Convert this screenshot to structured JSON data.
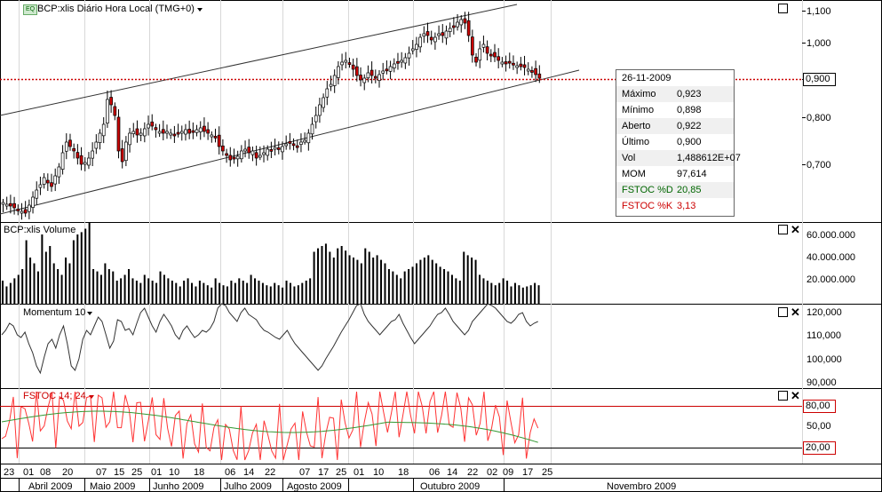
{
  "main_pane": {
    "title": "BCP:xlis Diário Hora Local (TMG+0)",
    "badge": "EQ",
    "y_ticks": [
      "1,100",
      "1,000",
      "0,900",
      "0,800",
      "0,700"
    ],
    "current_price": "0,900"
  },
  "info_box": {
    "date": "26-11-2009",
    "rows": [
      {
        "label": "Máximo",
        "value": "0,923",
        "color": "#000000"
      },
      {
        "label": "Mínimo",
        "value": "0,898",
        "color": "#000000"
      },
      {
        "label": "Aberto",
        "value": "0,922",
        "color": "#000000"
      },
      {
        "label": "Último",
        "value": "0,900",
        "color": "#000000"
      },
      {
        "label": "Vol",
        "value": "1,488612E+07",
        "color": "#000000"
      },
      {
        "label": "MOM",
        "value": "97,614",
        "color": "#000000"
      },
      {
        "label": "FSTOC %D",
        "value": "20,85",
        "color": "#006600"
      },
      {
        "label": "FSTOC %K",
        "value": "3,13",
        "color": "#cc0000"
      }
    ]
  },
  "volume_pane": {
    "title": "BCP:xlis Volume",
    "y_ticks": [
      "60.000.000",
      "40.000.000",
      "20.000.000"
    ]
  },
  "momentum_pane": {
    "title": "Momentum 10",
    "y_ticks": [
      "120,000",
      "110,000",
      "100,000",
      "90,000"
    ]
  },
  "fstoc_pane": {
    "title": "FSTOC 14; 24",
    "y_ticks": [
      "50,00"
    ],
    "levels": [
      "80,00",
      "20,00"
    ]
  },
  "x_axis": {
    "days": [
      "23",
      "01",
      "08",
      "20",
      "07",
      "15",
      "25",
      "01",
      "10",
      "18",
      "06",
      "14",
      "22",
      "07",
      "17",
      "25",
      "01",
      "10",
      "18",
      "06",
      "14",
      "22",
      "02",
      "09",
      "17",
      "25"
    ],
    "months": [
      "Abril 2009",
      "Maio 2009",
      "Junho 2009",
      "Julho 2009",
      "Agosto 2009",
      "Outubro 2009",
      "Novembro 2009"
    ]
  },
  "colors": {
    "up": "#ffffff",
    "down": "#cc0000",
    "fstoc_k": "#ff3333",
    "fstoc_d": "#339933",
    "ref_line": "#cc0000"
  }
}
